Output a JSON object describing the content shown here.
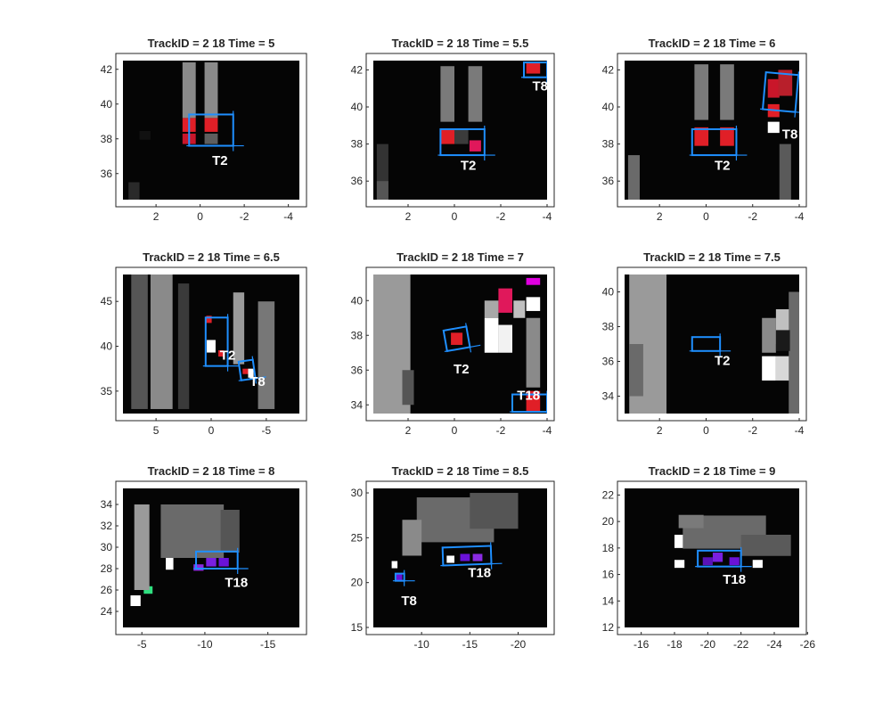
{
  "chart_data": [
    {
      "type": "heatmap",
      "title": "TrackID = 2  18 Time = 5",
      "xlim": [
        3.5,
        -4.5
      ],
      "ylim": [
        34.5,
        42.5
      ],
      "xticks": [
        2,
        0,
        -2,
        -4
      ],
      "xtick_labels": [
        "2",
        "0",
        "-2",
        "-4"
      ],
      "yticks": [
        36,
        38,
        40,
        42
      ],
      "ytick_labels": [
        "36",
        "38",
        "40",
        "42"
      ],
      "track_labels": [
        {
          "text": "T2",
          "x": -0.9,
          "y": 36.5
        }
      ],
      "boxes": [
        {
          "x": [
            -1.5,
            0.5
          ],
          "y": [
            37.6,
            39.4
          ],
          "angle": 0
        }
      ],
      "cells": [
        {
          "x": 0.5,
          "y": 38.8,
          "w": 0.6,
          "h": 0.8,
          "color": "#e01f27"
        },
        {
          "x": -0.5,
          "y": 38.8,
          "w": 0.6,
          "h": 0.8,
          "color": "#e01f27"
        },
        {
          "x": 0.5,
          "y": 38.0,
          "w": 0.6,
          "h": 0.6,
          "color": "#c9162a"
        },
        {
          "x": -0.5,
          "y": 38.0,
          "w": 0.6,
          "h": 0.6,
          "color": "#5e5e5e"
        },
        {
          "x": 0.5,
          "y": 40.8,
          "w": 0.6,
          "h": 3.2,
          "color": "#8a8a8a"
        },
        {
          "x": -0.5,
          "y": 40.8,
          "w": 0.6,
          "h": 3.2,
          "color": "#8a8a8a"
        },
        {
          "x": 3.0,
          "y": 35.0,
          "w": 0.5,
          "h": 1.0,
          "color": "#2a2a2a"
        },
        {
          "x": 2.5,
          "y": 38.2,
          "w": 0.5,
          "h": 0.5,
          "color": "#111111"
        }
      ]
    },
    {
      "type": "heatmap",
      "title": "TrackID = 2  18 Time = 5.5",
      "xlim": [
        3.5,
        -4.0
      ],
      "ylim": [
        35.0,
        42.5
      ],
      "xticks": [
        2,
        0,
        -2,
        -4
      ],
      "xtick_labels": [
        "2",
        "0",
        "-2",
        "-4"
      ],
      "yticks": [
        36,
        38,
        40,
        42
      ],
      "ytick_labels": [
        "36",
        "38",
        "40",
        "42"
      ],
      "track_labels": [
        {
          "text": "T2",
          "x": -0.6,
          "y": 36.6
        },
        {
          "text": "T8",
          "x": -3.7,
          "y": 40.9
        }
      ],
      "boxes": [
        {
          "x": [
            -1.3,
            0.6
          ],
          "y": [
            37.4,
            38.8
          ],
          "angle": 0
        },
        {
          "x": [
            -4.0,
            -3.0
          ],
          "y": [
            41.6,
            42.4
          ],
          "angle": 0
        }
      ],
      "cells": [
        {
          "x": 0.3,
          "y": 38.4,
          "w": 0.6,
          "h": 0.8,
          "color": "#e01f27"
        },
        {
          "x": -0.9,
          "y": 37.9,
          "w": 0.5,
          "h": 0.6,
          "color": "#e0185b"
        },
        {
          "x": -0.3,
          "y": 38.4,
          "w": 0.6,
          "h": 0.8,
          "color": "#3b3b3b"
        },
        {
          "x": 0.3,
          "y": 40.7,
          "w": 0.6,
          "h": 3.0,
          "color": "#7a7a7a"
        },
        {
          "x": -0.9,
          "y": 40.7,
          "w": 0.6,
          "h": 3.0,
          "color": "#7a7a7a"
        },
        {
          "x": -3.4,
          "y": 42.1,
          "w": 0.6,
          "h": 0.6,
          "color": "#e01f27"
        },
        {
          "x": 3.1,
          "y": 36.5,
          "w": 0.5,
          "h": 3.0,
          "color": "#333333"
        },
        {
          "x": 3.1,
          "y": 35.5,
          "w": 0.5,
          "h": 1.0,
          "color": "#555555"
        }
      ]
    },
    {
      "type": "heatmap",
      "title": "TrackID = 2  18 Time = 6",
      "xlim": [
        3.5,
        -4.0
      ],
      "ylim": [
        35.0,
        42.5
      ],
      "xticks": [
        2,
        0,
        -2,
        -4
      ],
      "xtick_labels": [
        "2",
        "0",
        "-2",
        "-4"
      ],
      "yticks": [
        36,
        38,
        40,
        42
      ],
      "ytick_labels": [
        "36",
        "38",
        "40",
        "42"
      ],
      "track_labels": [
        {
          "text": "T2",
          "x": -0.7,
          "y": 36.6
        },
        {
          "text": "T8",
          "x": -3.6,
          "y": 38.3
        }
      ],
      "boxes": [
        {
          "x": [
            -1.3,
            0.6
          ],
          "y": [
            37.4,
            38.8
          ],
          "angle": 0
        },
        {
          "x": [
            -3.9,
            -2.5
          ],
          "y": [
            39.8,
            41.8
          ],
          "angle": 5
        }
      ],
      "cells": [
        {
          "x": 0.2,
          "y": 38.4,
          "w": 0.6,
          "h": 1.0,
          "color": "#e01f27"
        },
        {
          "x": -0.9,
          "y": 38.4,
          "w": 0.6,
          "h": 1.0,
          "color": "#e01f27"
        },
        {
          "x": 0.2,
          "y": 40.8,
          "w": 0.6,
          "h": 3.0,
          "color": "#7a7a7a"
        },
        {
          "x": -0.9,
          "y": 40.8,
          "w": 0.6,
          "h": 3.0,
          "color": "#7a7a7a"
        },
        {
          "x": -2.9,
          "y": 41.0,
          "w": 0.5,
          "h": 1.0,
          "color": "#c9162a"
        },
        {
          "x": -3.4,
          "y": 41.3,
          "w": 0.6,
          "h": 1.4,
          "color": "#b81f2b"
        },
        {
          "x": -2.9,
          "y": 39.8,
          "w": 0.5,
          "h": 0.7,
          "color": "#e01f27"
        },
        {
          "x": -2.9,
          "y": 38.9,
          "w": 0.5,
          "h": 0.6,
          "color": "#ffffff"
        },
        {
          "x": -3.4,
          "y": 36.5,
          "w": 0.5,
          "h": 3.0,
          "color": "#5a5a5a"
        },
        {
          "x": 3.1,
          "y": 36.2,
          "w": 0.5,
          "h": 2.4,
          "color": "#6a6a6a"
        }
      ]
    },
    {
      "type": "heatmap",
      "title": "TrackID = 2  18 Time = 6.5",
      "xlim": [
        8.0,
        -8.0
      ],
      "ylim": [
        32.5,
        48.0
      ],
      "xticks": [
        5,
        0,
        -5
      ],
      "xtick_labels": [
        "5",
        "0",
        "-5"
      ],
      "yticks": [
        35,
        40,
        45
      ],
      "ytick_labels": [
        "35",
        "40",
        "45"
      ],
      "track_labels": [
        {
          "text": "T2",
          "x": -1.5,
          "y": 38.5
        },
        {
          "text": "T8",
          "x": -4.2,
          "y": 35.6
        }
      ],
      "boxes": [
        {
          "x": [
            -1.5,
            0.5
          ],
          "y": [
            37.8,
            43.2
          ],
          "angle": 0
        },
        {
          "x": [
            -3.9,
            -2.6
          ],
          "y": [
            36.3,
            38.4
          ],
          "angle": -8
        }
      ],
      "cells": [
        {
          "x": 0.2,
          "y": 43.0,
          "w": 0.5,
          "h": 0.8,
          "color": "#e01f27"
        },
        {
          "x": 0.0,
          "y": 40.0,
          "w": 0.8,
          "h": 1.4,
          "color": "#ffffff"
        },
        {
          "x": -0.9,
          "y": 39.2,
          "w": 0.5,
          "h": 0.7,
          "color": "#e01f27"
        },
        {
          "x": -3.1,
          "y": 37.2,
          "w": 0.5,
          "h": 0.6,
          "color": "#e01f27"
        },
        {
          "x": -3.6,
          "y": 37.0,
          "w": 0.5,
          "h": 1.0,
          "color": "#ffffff"
        },
        {
          "x": 4.5,
          "y": 40.5,
          "w": 2.0,
          "h": 15.0,
          "color": "#8a8a8a"
        },
        {
          "x": 6.5,
          "y": 40.5,
          "w": 1.5,
          "h": 15.0,
          "color": "#555555"
        },
        {
          "x": -2.5,
          "y": 42.0,
          "w": 1.0,
          "h": 8.0,
          "color": "#9a9a9a"
        },
        {
          "x": -5.0,
          "y": 39.0,
          "w": 1.5,
          "h": 12.0,
          "color": "#777777"
        },
        {
          "x": 2.5,
          "y": 40.0,
          "w": 1.0,
          "h": 14.0,
          "color": "#3a3a3a"
        }
      ]
    },
    {
      "type": "heatmap",
      "title": "TrackID = 2  18 Time = 7",
      "xlim": [
        3.5,
        -4.0
      ],
      "ylim": [
        33.5,
        41.5
      ],
      "xticks": [
        2,
        0,
        -2,
        -4
      ],
      "xtick_labels": [
        "2",
        "0",
        "-2",
        "-4"
      ],
      "yticks": [
        34,
        36,
        38,
        40
      ],
      "ytick_labels": [
        "34",
        "36",
        "38",
        "40"
      ],
      "track_labels": [
        {
          "text": "T2",
          "x": -0.3,
          "y": 35.8
        },
        {
          "text": "T18",
          "x": -3.2,
          "y": 34.3
        }
      ],
      "boxes": [
        {
          "x": [
            -0.6,
            0.4
          ],
          "y": [
            37.2,
            38.4
          ],
          "angle": -10
        },
        {
          "x": [
            -4.0,
            -2.5
          ],
          "y": [
            33.6,
            34.6
          ],
          "angle": 0
        }
      ],
      "cells": [
        {
          "x": -0.1,
          "y": 37.8,
          "w": 0.5,
          "h": 0.7,
          "color": "#e01f27"
        },
        {
          "x": -2.2,
          "y": 40.0,
          "w": 0.6,
          "h": 1.4,
          "color": "#e0185b"
        },
        {
          "x": -3.4,
          "y": 41.1,
          "w": 0.6,
          "h": 0.4,
          "color": "#e000e0"
        },
        {
          "x": -1.6,
          "y": 39.5,
          "w": 0.6,
          "h": 1.0,
          "color": "#a8a8a8"
        },
        {
          "x": -1.6,
          "y": 38.0,
          "w": 0.6,
          "h": 2.0,
          "color": "#ffffff"
        },
        {
          "x": -2.2,
          "y": 37.8,
          "w": 0.6,
          "h": 1.6,
          "color": "#f2f2f2"
        },
        {
          "x": -2.8,
          "y": 39.5,
          "w": 0.5,
          "h": 1.0,
          "color": "#c0c0c0"
        },
        {
          "x": -3.4,
          "y": 39.8,
          "w": 0.6,
          "h": 0.8,
          "color": "#ffffff"
        },
        {
          "x": -3.4,
          "y": 37.0,
          "w": 0.6,
          "h": 4.0,
          "color": "#8a8a8a"
        },
        {
          "x": -3.4,
          "y": 34.2,
          "w": 0.6,
          "h": 1.2,
          "color": "#e01f27"
        },
        {
          "x": 2.7,
          "y": 37.5,
          "w": 1.6,
          "h": 8.0,
          "color": "#9a9a9a"
        },
        {
          "x": 2.0,
          "y": 35.0,
          "w": 0.5,
          "h": 2.0,
          "color": "#555555"
        }
      ]
    },
    {
      "type": "heatmap",
      "title": "TrackID = 2  18 Time = 7.5",
      "xlim": [
        3.5,
        -4.0
      ],
      "ylim": [
        33.0,
        41.0
      ],
      "xticks": [
        2,
        0,
        -2,
        -4
      ],
      "xtick_labels": [
        "2",
        "0",
        "-2",
        "-4"
      ],
      "yticks": [
        34,
        36,
        38,
        40
      ],
      "ytick_labels": [
        "34",
        "36",
        "38",
        "40"
      ],
      "track_labels": [
        {
          "text": "T2",
          "x": -0.7,
          "y": 35.8
        }
      ],
      "boxes": [
        {
          "x": [
            -0.6,
            0.6
          ],
          "y": [
            36.6,
            37.4
          ],
          "angle": 0
        }
      ],
      "cells": [
        {
          "x": 2.5,
          "y": 37.0,
          "w": 1.6,
          "h": 8.0,
          "color": "#9a9a9a"
        },
        {
          "x": 3.0,
          "y": 35.5,
          "w": 0.6,
          "h": 3.0,
          "color": "#6a6a6a"
        },
        {
          "x": -2.7,
          "y": 37.5,
          "w": 0.6,
          "h": 2.0,
          "color": "#8a8a8a"
        },
        {
          "x": -2.7,
          "y": 35.6,
          "w": 0.6,
          "h": 1.4,
          "color": "#ffffff"
        },
        {
          "x": -3.3,
          "y": 38.0,
          "w": 0.6,
          "h": 2.0,
          "color": "#c0c0c0"
        },
        {
          "x": -3.3,
          "y": 35.6,
          "w": 0.6,
          "h": 1.4,
          "color": "#d8d8d8"
        },
        {
          "x": -3.8,
          "y": 36.5,
          "w": 0.5,
          "h": 7.0,
          "color": "#6a6a6a"
        },
        {
          "x": -3.3,
          "y": 37.2,
          "w": 0.6,
          "h": 1.2,
          "color": "#1a1a1a"
        }
      ]
    },
    {
      "type": "heatmap",
      "title": "TrackID = 2  18 Time = 8",
      "xlim": [
        -3.5,
        -17.5
      ],
      "ylim": [
        22.5,
        35.5
      ],
      "xticks": [
        -5,
        -10,
        -15
      ],
      "xtick_labels": [
        "-5",
        "-10",
        "-15"
      ],
      "yticks": [
        24,
        26,
        28,
        30,
        32,
        34
      ],
      "ytick_labels": [
        "24",
        "26",
        "28",
        "30",
        "32",
        "34"
      ],
      "track_labels": [
        {
          "text": "T18",
          "x": -12.5,
          "y": 26.3
        }
      ],
      "boxes": [
        {
          "x": [
            -12.6,
            -9.3
          ],
          "y": [
            28.0,
            29.6
          ],
          "angle": 0
        }
      ],
      "cells": [
        {
          "x": -10.5,
          "y": 28.6,
          "w": 0.8,
          "h": 0.8,
          "color": "#7a1fe0"
        },
        {
          "x": -11.5,
          "y": 28.6,
          "w": 0.8,
          "h": 0.8,
          "color": "#6a12d8"
        },
        {
          "x": -9.5,
          "y": 28.1,
          "w": 0.8,
          "h": 0.6,
          "color": "#8a2be2"
        },
        {
          "x": -7.2,
          "y": 29.8,
          "w": 0.6,
          "h": 0.6,
          "color": "#8a12a8"
        },
        {
          "x": -5.5,
          "y": 26.0,
          "w": 0.7,
          "h": 0.7,
          "color": "#30e080"
        },
        {
          "x": -7.2,
          "y": 28.5,
          "w": 0.6,
          "h": 1.2,
          "color": "#ffffff"
        },
        {
          "x": -5.0,
          "y": 30.0,
          "w": 1.2,
          "h": 8.0,
          "color": "#9a9a9a"
        },
        {
          "x": -9.0,
          "y": 31.5,
          "w": 5.0,
          "h": 5.0,
          "color": "#6a6a6a"
        },
        {
          "x": -12.0,
          "y": 31.5,
          "w": 1.5,
          "h": 4.0,
          "color": "#555555"
        },
        {
          "x": -4.5,
          "y": 25.0,
          "w": 0.8,
          "h": 1.0,
          "color": "#ffffff"
        }
      ]
    },
    {
      "type": "heatmap",
      "title": "TrackID = 2  18 Time = 8.5",
      "xlim": [
        -5.0,
        -23.0
      ],
      "ylim": [
        15.0,
        30.5
      ],
      "xticks": [
        -10,
        -15,
        -20
      ],
      "xtick_labels": [
        "-10",
        "-15",
        "-20"
      ],
      "yticks": [
        15,
        20,
        25,
        30
      ],
      "ytick_labels": [
        "15",
        "20",
        "25",
        "30"
      ],
      "track_labels": [
        {
          "text": "T8",
          "x": -8.7,
          "y": 17.5
        },
        {
          "text": "T18",
          "x": -16.0,
          "y": 20.6
        }
      ],
      "boxes": [
        {
          "x": [
            -17.2,
            -12.2
          ],
          "y": [
            22.0,
            24.0
          ],
          "angle": -2
        },
        {
          "x": [
            -8.2,
            -7.3
          ],
          "y": [
            20.2,
            21.0
          ],
          "angle": 0
        }
      ],
      "cells": [
        {
          "x": -14.5,
          "y": 22.8,
          "w": 1.0,
          "h": 0.8,
          "color": "#6a12d8"
        },
        {
          "x": -15.8,
          "y": 22.8,
          "w": 1.0,
          "h": 0.8,
          "color": "#8a2be2"
        },
        {
          "x": -13.0,
          "y": 22.6,
          "w": 0.8,
          "h": 0.8,
          "color": "#ffffff"
        },
        {
          "x": -7.7,
          "y": 20.6,
          "w": 0.6,
          "h": 0.8,
          "color": "#6a12d8"
        },
        {
          "x": -13.5,
          "y": 27.0,
          "w": 8.0,
          "h": 5.0,
          "color": "#6a6a6a"
        },
        {
          "x": -17.5,
          "y": 28.0,
          "w": 5.0,
          "h": 4.0,
          "color": "#555555"
        },
        {
          "x": -9.0,
          "y": 25.0,
          "w": 2.0,
          "h": 4.0,
          "color": "#8a8a8a"
        },
        {
          "x": -7.2,
          "y": 22.0,
          "w": 0.6,
          "h": 0.8,
          "color": "#ffffff"
        }
      ]
    },
    {
      "type": "heatmap",
      "title": "TrackID = 2  18 Time = 9",
      "xlim": [
        -15.0,
        -25.5
      ],
      "ylim": [
        12.0,
        22.5
      ],
      "xticks": [
        -16,
        -18,
        -20,
        -22,
        -24,
        -26
      ],
      "xtick_labels": [
        "-16",
        "-18",
        "-20",
        "-22",
        "-24",
        "-26"
      ],
      "yticks": [
        12,
        14,
        16,
        18,
        20,
        22
      ],
      "ytick_labels": [
        "12",
        "14",
        "16",
        "18",
        "20",
        "22"
      ],
      "track_labels": [
        {
          "text": "T18",
          "x": -21.6,
          "y": 15.3
        }
      ],
      "boxes": [
        {
          "x": [
            -22.0,
            -19.4
          ],
          "y": [
            16.6,
            17.8
          ],
          "angle": 0
        }
      ],
      "cells": [
        {
          "x": -20.6,
          "y": 17.3,
          "w": 0.6,
          "h": 0.7,
          "color": "#7a1fe0"
        },
        {
          "x": -21.6,
          "y": 17.0,
          "w": 0.6,
          "h": 0.6,
          "color": "#6a12d8"
        },
        {
          "x": -20.0,
          "y": 17.0,
          "w": 0.6,
          "h": 0.6,
          "color": "#5a12b8"
        },
        {
          "x": -18.3,
          "y": 18.5,
          "w": 0.6,
          "h": 1.0,
          "color": "#ffffff"
        },
        {
          "x": -23.0,
          "y": 16.8,
          "w": 0.6,
          "h": 0.6,
          "color": "#ffffff"
        },
        {
          "x": -18.3,
          "y": 16.8,
          "w": 0.6,
          "h": 0.6,
          "color": "#ffffff"
        },
        {
          "x": -21.0,
          "y": 19.2,
          "w": 5.0,
          "h": 2.5,
          "color": "#6a6a6a"
        },
        {
          "x": -23.5,
          "y": 18.2,
          "w": 3.0,
          "h": 1.6,
          "color": "#5a5a5a"
        },
        {
          "x": -19.0,
          "y": 20.0,
          "w": 1.5,
          "h": 1.0,
          "color": "#7a7a7a"
        }
      ]
    }
  ]
}
